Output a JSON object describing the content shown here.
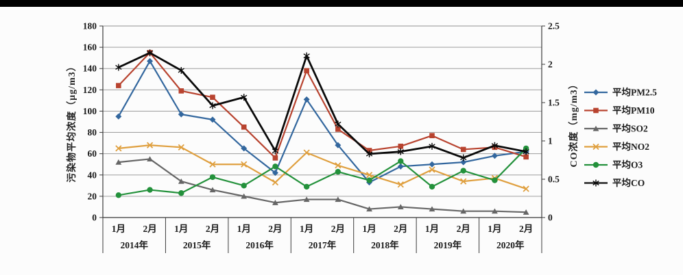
{
  "page": {
    "background_color": "#fcfcfc",
    "top_bar_color": "#000000"
  },
  "chart_data": {
    "type": "line",
    "title": "",
    "grid": true,
    "legend_position": "right",
    "left_axis": {
      "label": "污染物平均浓度（μg/m3）",
      "min": 0,
      "max": 180,
      "tick_step": 20,
      "ticks": [
        "0",
        "20",
        "40",
        "60",
        "80",
        "100",
        "120",
        "140",
        "160",
        "180"
      ]
    },
    "right_axis": {
      "label": "CO浓度（mg/m3）",
      "min": 0,
      "max": 2.5,
      "tick_step": 0.5,
      "ticks": [
        "0",
        "0.5",
        "1",
        "1.5",
        "2",
        "2.5"
      ]
    },
    "x_axis": {
      "years": [
        "2014年",
        "2015年",
        "2016年",
        "2017年",
        "2018年",
        "2019年",
        "2020年"
      ],
      "months": [
        "1月",
        "2月"
      ]
    },
    "categories": [
      "2014年1月",
      "2014年2月",
      "2015年1月",
      "2015年2月",
      "2016年1月",
      "2016年2月",
      "2017年1月",
      "2017年2月",
      "2018年1月",
      "2018年2月",
      "2019年1月",
      "2019年2月",
      "2020年1月",
      "2020年2月"
    ],
    "series": [
      {
        "name": "平均PM2.5",
        "key": "pm25",
        "color": "#33679E",
        "marker": "diamond",
        "axis": "left",
        "values": [
          95,
          147,
          97,
          92,
          65,
          42,
          111,
          68,
          33,
          48,
          50,
          52,
          58,
          62
        ]
      },
      {
        "name": "平均PM10",
        "key": "pm10",
        "color": "#B8432F",
        "marker": "square",
        "axis": "left",
        "values": [
          124,
          155,
          119,
          113,
          85,
          56,
          138,
          83,
          63,
          67,
          77,
          64,
          66,
          57
        ]
      },
      {
        "name": "平均SO2",
        "key": "so2",
        "color": "#666666",
        "marker": "triangle",
        "axis": "left",
        "values": [
          52,
          55,
          34,
          26,
          20,
          14,
          17,
          17,
          8,
          10,
          8,
          6,
          6,
          5
        ]
      },
      {
        "name": "平均NO2",
        "key": "no2",
        "color": "#DF9F3E",
        "marker": "x",
        "axis": "left",
        "values": [
          65,
          68,
          66,
          50,
          50,
          33,
          61,
          49,
          40,
          31,
          45,
          34,
          37,
          27
        ]
      },
      {
        "name": "平均O3",
        "key": "o3",
        "color": "#23913B",
        "marker": "circle",
        "axis": "left",
        "values": [
          21,
          26,
          23,
          38,
          30,
          48,
          29,
          43,
          35,
          53,
          29,
          44,
          35,
          65
        ]
      },
      {
        "name": "平均CO",
        "key": "co",
        "color": "#0a0a0a",
        "marker": "star",
        "axis": "right",
        "values": [
          1.96,
          2.15,
          1.92,
          1.46,
          1.57,
          0.87,
          2.11,
          1.22,
          0.83,
          0.86,
          0.93,
          0.78,
          0.94,
          0.86
        ]
      }
    ]
  }
}
